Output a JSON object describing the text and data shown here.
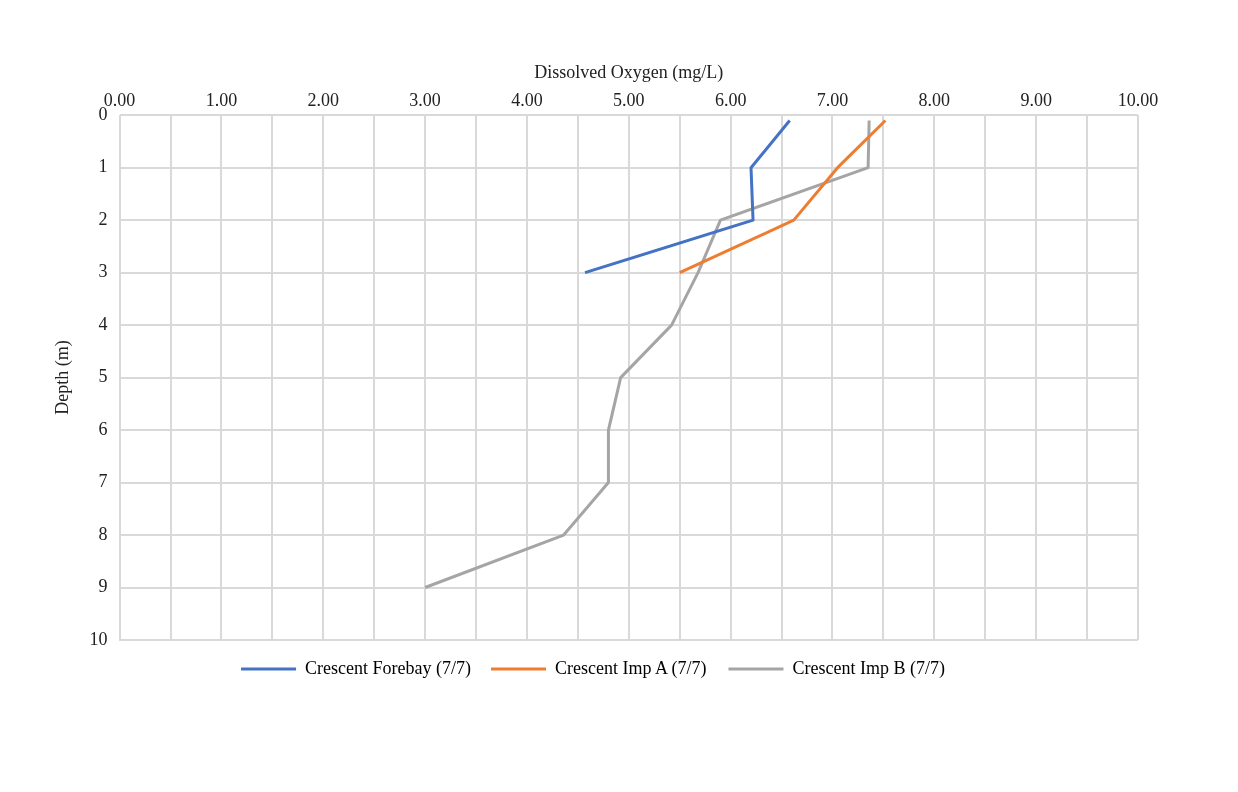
{
  "chart_data": {
    "type": "line",
    "xlabel": "Dissolved Oxygen (mg/L)",
    "ylabel": "Depth (m)",
    "xlim": [
      0,
      10
    ],
    "ylim": [
      10,
      0
    ],
    "xticks": [
      {
        "value": 0,
        "label": "0.00"
      },
      {
        "value": 0.5,
        "label": null
      },
      {
        "value": 1,
        "label": "1.00"
      },
      {
        "value": 1.5,
        "label": null
      },
      {
        "value": 2,
        "label": "2.00"
      },
      {
        "value": 2.5,
        "label": null
      },
      {
        "value": 3,
        "label": "3.00"
      },
      {
        "value": 3.5,
        "label": null
      },
      {
        "value": 4,
        "label": "4.00"
      },
      {
        "value": 4.5,
        "label": null
      },
      {
        "value": 5,
        "label": "5.00"
      },
      {
        "value": 5.5,
        "label": null
      },
      {
        "value": 6,
        "label": "6.00"
      },
      {
        "value": 6.5,
        "label": null
      },
      {
        "value": 7,
        "label": "7.00"
      },
      {
        "value": 7.5,
        "label": null
      },
      {
        "value": 8,
        "label": "8.00"
      },
      {
        "value": 8.5,
        "label": null
      },
      {
        "value": 9,
        "label": "9.00"
      },
      {
        "value": 9.5,
        "label": null
      },
      {
        "value": 10,
        "label": "10.00"
      }
    ],
    "yticks": [
      0,
      1,
      2,
      3,
      4,
      5,
      6,
      7,
      8,
      9,
      10
    ],
    "grid": true,
    "legend": "bottom",
    "marker": "none",
    "line_style": "solid",
    "series": [
      {
        "name": "Crescent Forebay (7/7)",
        "color": "#4472c4",
        "x": [
          6.58,
          6.2,
          6.22,
          4.57
        ],
        "values": [
          0.1,
          1,
          2,
          3
        ]
      },
      {
        "name": "Crescent Imp A (7/7)",
        "color": "#ed7d31",
        "x": [
          7.52,
          7.05,
          6.62,
          5.5
        ],
        "values": [
          0.1,
          1,
          2,
          3
        ]
      },
      {
        "name": "Crescent Imp B (7/7)",
        "color": "#a5a5a5",
        "x": [
          7.36,
          7.35,
          5.9,
          5.68,
          5.42,
          4.92,
          4.8,
          4.8,
          4.36,
          3.0
        ],
        "values": [
          0.1,
          1,
          2,
          3,
          4,
          5,
          6,
          7,
          8,
          9
        ]
      }
    ]
  }
}
